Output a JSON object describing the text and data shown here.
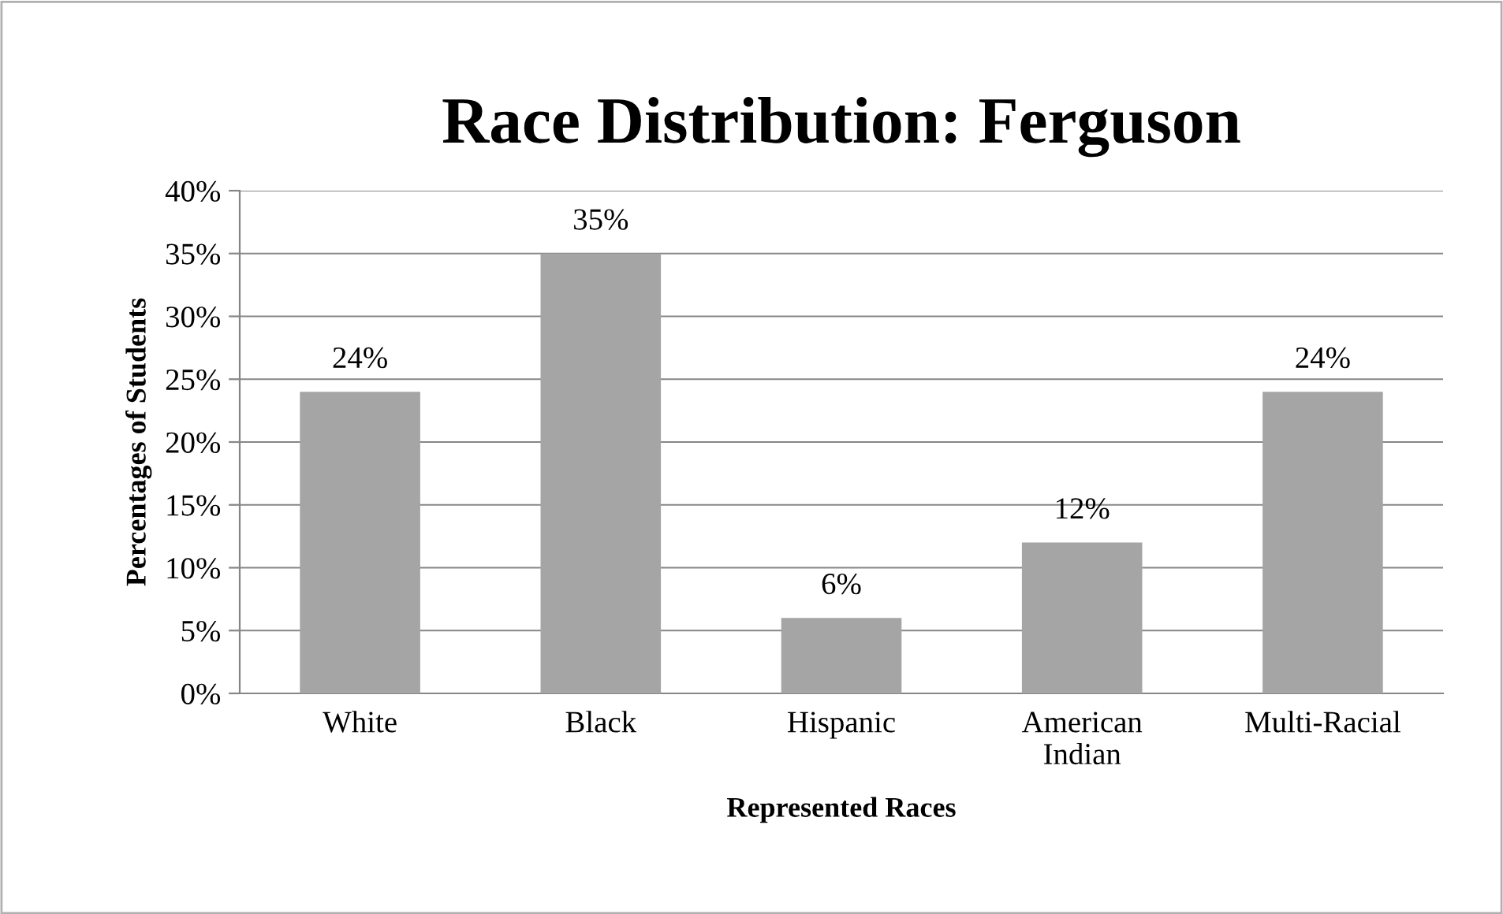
{
  "chart_data": {
    "type": "bar",
    "title": "Race Distribution: Ferguson",
    "xlabel": "Represented Races",
    "ylabel": "Percentages of Students",
    "categories": [
      "White",
      "Black",
      "Hispanic",
      "American\nIndian",
      "Multi-Racial"
    ],
    "values": [
      24,
      35,
      6,
      12,
      24
    ],
    "color": "#a5a5a5",
    "value_labels": [
      "24%",
      "35%",
      "6%",
      "12%",
      "24%"
    ],
    "ylim": [
      0,
      40
    ],
    "yticks": [
      {
        "value": 0,
        "label": "0%"
      },
      {
        "value": 5,
        "label": "5%"
      },
      {
        "value": 10,
        "label": "10%"
      },
      {
        "value": 15,
        "label": "15%"
      },
      {
        "value": 20,
        "label": "20%"
      },
      {
        "value": 25,
        "label": "25%"
      },
      {
        "value": 30,
        "label": "30%"
      },
      {
        "value": 35,
        "label": "35%"
      },
      {
        "value": 40,
        "label": "40%"
      }
    ],
    "grid": "y",
    "legend": false
  }
}
